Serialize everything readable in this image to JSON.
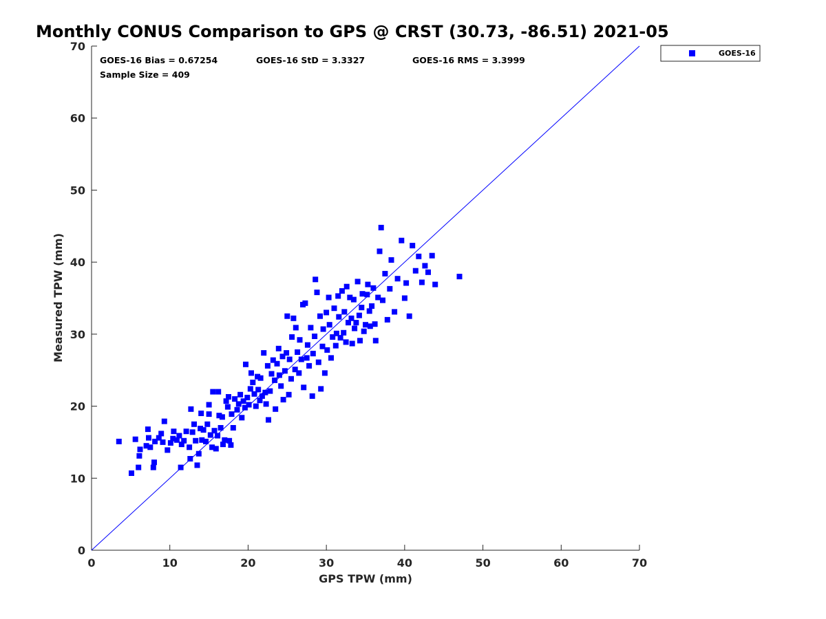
{
  "chart_data": {
    "type": "scatter",
    "title": "Monthly CONUS Comparison to GPS @ CRST (30.73, -86.51) 2021-05",
    "xlabel": "GPS TPW (mm)",
    "ylabel": "Measured TPW (mm)",
    "xlim": [
      0,
      70
    ],
    "ylim": [
      0,
      70
    ],
    "xticks": [
      0,
      10,
      20,
      30,
      40,
      50,
      60,
      70
    ],
    "yticks": [
      0,
      10,
      20,
      30,
      40,
      50,
      60,
      70
    ],
    "grid": false,
    "legend_position": "outside-top-right",
    "reference_line": {
      "x": [
        0,
        70
      ],
      "y": [
        0,
        70
      ],
      "color": "#0000ff"
    },
    "stats": {
      "bias": "GOES-16 Bias = 0.67254",
      "std": "GOES-16 StD = 3.3327",
      "rms": "GOES-16 RMS = 3.3999",
      "sample_size": "Sample Size = 409"
    },
    "series": [
      {
        "name": "GOES-16",
        "color": "#0000ff",
        "marker": "square",
        "points": [
          [
            3.5,
            15.1
          ],
          [
            5.1,
            10.7
          ],
          [
            5.6,
            15.4
          ],
          [
            6.0,
            11.5
          ],
          [
            6.1,
            13.1
          ],
          [
            6.2,
            14.0
          ],
          [
            7.0,
            14.5
          ],
          [
            7.2,
            16.8
          ],
          [
            7.3,
            15.6
          ],
          [
            7.5,
            14.3
          ],
          [
            7.9,
            11.5
          ],
          [
            8.0,
            12.2
          ],
          [
            8.1,
            15.1
          ],
          [
            8.6,
            15.6
          ],
          [
            8.9,
            16.2
          ],
          [
            9.1,
            15.0
          ],
          [
            9.3,
            17.9
          ],
          [
            9.7,
            13.9
          ],
          [
            10.1,
            14.9
          ],
          [
            10.4,
            15.5
          ],
          [
            10.5,
            16.5
          ],
          [
            10.9,
            15.3
          ],
          [
            11.2,
            15.9
          ],
          [
            11.4,
            11.5
          ],
          [
            11.5,
            14.7
          ],
          [
            11.8,
            15.2
          ],
          [
            12.1,
            16.5
          ],
          [
            12.5,
            14.3
          ],
          [
            12.6,
            12.7
          ],
          [
            12.7,
            19.6
          ],
          [
            12.9,
            16.4
          ],
          [
            13.1,
            17.5
          ],
          [
            13.3,
            15.2
          ],
          [
            13.5,
            11.8
          ],
          [
            13.7,
            13.4
          ],
          [
            13.9,
            16.9
          ],
          [
            14.0,
            19.0
          ],
          [
            14.1,
            15.3
          ],
          [
            14.3,
            16.7
          ],
          [
            14.6,
            15.1
          ],
          [
            14.8,
            17.5
          ],
          [
            15.0,
            20.2
          ],
          [
            15.0,
            18.9
          ],
          [
            15.2,
            16.0
          ],
          [
            15.4,
            14.3
          ],
          [
            15.5,
            22.0
          ],
          [
            15.7,
            16.6
          ],
          [
            15.9,
            14.1
          ],
          [
            16.1,
            15.9
          ],
          [
            16.2,
            22.0
          ],
          [
            16.3,
            18.7
          ],
          [
            16.5,
            17.0
          ],
          [
            16.7,
            18.5
          ],
          [
            16.8,
            14.7
          ],
          [
            17.0,
            15.3
          ],
          [
            17.2,
            20.7
          ],
          [
            17.4,
            19.9
          ],
          [
            17.5,
            21.3
          ],
          [
            17.6,
            15.2
          ],
          [
            17.8,
            14.6
          ],
          [
            17.9,
            18.9
          ],
          [
            18.1,
            17.0
          ],
          [
            18.3,
            21.0
          ],
          [
            18.6,
            19.5
          ],
          [
            18.8,
            20.3
          ],
          [
            19.0,
            21.6
          ],
          [
            19.2,
            18.4
          ],
          [
            19.4,
            20.7
          ],
          [
            19.6,
            19.8
          ],
          [
            19.7,
            25.8
          ],
          [
            19.9,
            21.2
          ],
          [
            20.1,
            20.2
          ],
          [
            20.3,
            22.4
          ],
          [
            20.4,
            24.6
          ],
          [
            20.6,
            23.3
          ],
          [
            20.8,
            21.7
          ],
          [
            21.0,
            20.0
          ],
          [
            21.2,
            24.1
          ],
          [
            21.3,
            22.3
          ],
          [
            21.5,
            20.8
          ],
          [
            21.6,
            23.9
          ],
          [
            21.8,
            21.4
          ],
          [
            22.0,
            27.4
          ],
          [
            22.2,
            21.9
          ],
          [
            22.3,
            20.3
          ],
          [
            22.5,
            25.6
          ],
          [
            22.6,
            18.1
          ],
          [
            22.8,
            22.1
          ],
          [
            23.0,
            24.5
          ],
          [
            23.2,
            26.4
          ],
          [
            23.4,
            23.6
          ],
          [
            23.5,
            19.6
          ],
          [
            23.7,
            25.9
          ],
          [
            23.9,
            28.0
          ],
          [
            24.0,
            24.3
          ],
          [
            24.2,
            22.8
          ],
          [
            24.4,
            26.9
          ],
          [
            24.5,
            20.9
          ],
          [
            24.7,
            24.9
          ],
          [
            24.9,
            27.4
          ],
          [
            25.0,
            32.5
          ],
          [
            25.2,
            21.6
          ],
          [
            25.3,
            26.5
          ],
          [
            25.5,
            23.8
          ],
          [
            25.6,
            29.6
          ],
          [
            25.8,
            32.2
          ],
          [
            26.0,
            25.1
          ],
          [
            26.1,
            30.9
          ],
          [
            26.3,
            27.5
          ],
          [
            26.5,
            24.6
          ],
          [
            26.6,
            29.2
          ],
          [
            26.8,
            26.5
          ],
          [
            27.0,
            34.1
          ],
          [
            27.1,
            22.6
          ],
          [
            27.3,
            34.3
          ],
          [
            27.5,
            26.7
          ],
          [
            27.6,
            28.5
          ],
          [
            27.8,
            25.6
          ],
          [
            28.0,
            30.9
          ],
          [
            28.2,
            21.4
          ],
          [
            28.3,
            27.3
          ],
          [
            28.5,
            29.7
          ],
          [
            28.6,
            37.6
          ],
          [
            28.8,
            35.8
          ],
          [
            29.0,
            26.1
          ],
          [
            29.2,
            32.5
          ],
          [
            29.3,
            22.4
          ],
          [
            29.5,
            28.3
          ],
          [
            29.6,
            30.7
          ],
          [
            29.8,
            24.6
          ],
          [
            30.0,
            33.0
          ],
          [
            30.1,
            27.8
          ],
          [
            30.3,
            35.1
          ],
          [
            30.4,
            31.3
          ],
          [
            30.6,
            26.7
          ],
          [
            30.8,
            29.6
          ],
          [
            31.0,
            33.6
          ],
          [
            31.2,
            28.4
          ],
          [
            31.3,
            30.1
          ],
          [
            31.5,
            35.3
          ],
          [
            31.6,
            32.4
          ],
          [
            31.8,
            29.5
          ],
          [
            32.0,
            36.0
          ],
          [
            32.2,
            30.2
          ],
          [
            32.3,
            33.1
          ],
          [
            32.5,
            28.9
          ],
          [
            32.6,
            36.6
          ],
          [
            32.8,
            31.6
          ],
          [
            33.0,
            35.1
          ],
          [
            33.2,
            32.2
          ],
          [
            33.3,
            28.7
          ],
          [
            33.5,
            34.8
          ],
          [
            33.6,
            30.8
          ],
          [
            33.8,
            31.6
          ],
          [
            34.0,
            37.3
          ],
          [
            34.2,
            32.6
          ],
          [
            34.3,
            29.1
          ],
          [
            34.5,
            33.7
          ],
          [
            34.6,
            35.6
          ],
          [
            34.8,
            30.4
          ],
          [
            35.0,
            31.3
          ],
          [
            35.2,
            35.5
          ],
          [
            35.3,
            36.9
          ],
          [
            35.5,
            33.2
          ],
          [
            35.6,
            31.1
          ],
          [
            35.8,
            33.9
          ],
          [
            36.0,
            36.4
          ],
          [
            36.2,
            31.4
          ],
          [
            36.3,
            29.1
          ],
          [
            36.6,
            35.1
          ],
          [
            36.8,
            41.5
          ],
          [
            37.0,
            44.8
          ],
          [
            37.2,
            34.7
          ],
          [
            37.5,
            38.4
          ],
          [
            37.8,
            32.0
          ],
          [
            38.1,
            36.3
          ],
          [
            38.3,
            40.3
          ],
          [
            38.7,
            33.1
          ],
          [
            39.1,
            37.7
          ],
          [
            39.6,
            43.0
          ],
          [
            40.0,
            35.0
          ],
          [
            40.2,
            37.1
          ],
          [
            40.6,
            32.5
          ],
          [
            41.0,
            42.3
          ],
          [
            41.4,
            38.8
          ],
          [
            41.8,
            40.8
          ],
          [
            42.2,
            37.2
          ],
          [
            42.6,
            39.5
          ],
          [
            43.0,
            38.6
          ],
          [
            43.5,
            40.9
          ],
          [
            43.9,
            36.9
          ],
          [
            47.0,
            38.0
          ]
        ]
      }
    ]
  }
}
